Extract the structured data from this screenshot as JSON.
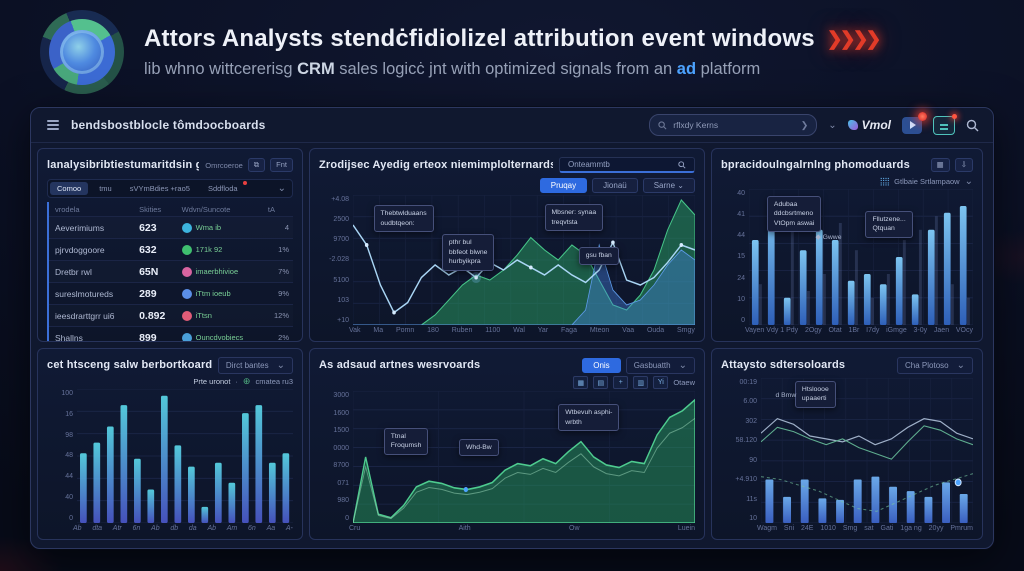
{
  "theme": {
    "bg": "#0a0f22",
    "panel": "#0e162e",
    "accent_blue": "#2e6ae0",
    "green": "#35b47c",
    "cyan": "#52c8e8",
    "red": "#e23b28"
  },
  "icons": {
    "chevron_down": "⌄",
    "copy": "⧉",
    "grid": "▦",
    "download": "⇩",
    "dot": "·",
    "circle_plus": "⊕",
    "diamond": "◆",
    "search": "⌕"
  },
  "header": {
    "title": "Attors Analysts stendċfidiolizel attribution event windows",
    "arrows": "❯❯❯❯",
    "subtitle_pre": "lib whno wittcererisg ",
    "subtitle_crm": "CRM",
    "subtitle_mid": " sales logicċ jnt with optimized signals from an ",
    "subtitle_ad": "ad",
    "subtitle_post": " platform"
  },
  "window": {
    "title": "bendsbostblocle tômdɔocboards",
    "search_value": "rflxdy Kerns",
    "brand": "Vmol"
  },
  "panelA": {
    "title": "lanalysibribtiestumaritdsin gjoords",
    "meta": "Omrcoeroe",
    "btn_fnt": "Fnt",
    "tabs": [
      {
        "label": "Comoo",
        "active": true,
        "dot": false
      },
      {
        "label": "tmu",
        "active": false,
        "dot": false
      },
      {
        "label": "sVYmBdies +rao5",
        "active": false,
        "dot": false
      },
      {
        "label": "Sddfloda",
        "active": false,
        "dot": true
      }
    ],
    "columns": [
      "vrodela",
      "Skities",
      "Wdvn/Suncote",
      "tA"
    ],
    "rows": [
      {
        "name": "Aeverimiums",
        "value": "623",
        "tag": "Wma ib",
        "pct": "4",
        "color": "#3db4de"
      },
      {
        "name": "pjrvdoggoore",
        "value": "632",
        "tag": "171k 92",
        "pct": "1%",
        "color": "#3fbf6f"
      },
      {
        "name": "Dretbr rwl",
        "value": "65N",
        "tag": "imaerbhivioe",
        "pct": "7%",
        "color": "#d864a0"
      },
      {
        "name": "sureslmotureds",
        "value": "289",
        "tag": "iTtm ioeub",
        "pct": "9%",
        "color": "#5b8fe8"
      },
      {
        "name": "ieesdrarttgrr ui6",
        "value": "0.892",
        "tag": "iTtsn",
        "pct": "12%",
        "color": "#e05c78"
      },
      {
        "name": "Shallns",
        "value": "899",
        "tag": "Ouncdvobiecs",
        "pct": "2%",
        "color": "#4a9fd8"
      }
    ]
  },
  "panelB": {
    "title": "Zrodijsec Ayedig erteox niemimplolternards",
    "search": "Onteammtb",
    "buttons": [
      {
        "label": "Pruqay",
        "active": true
      },
      {
        "label": "Jionaü",
        "active": false
      },
      {
        "label": "Sarne ⌄",
        "active": false
      }
    ]
  },
  "panelC": {
    "title": "bpracidoulngalrnlng phomoduards",
    "legend": "Gtlbaie Srtlampaow"
  },
  "panelD": {
    "title": "cet htsceng salw berbortkoards",
    "select": "Dirct bantes",
    "legend1": "Prte uronot",
    "legend2": "cmatea ru3"
  },
  "panelE": {
    "title": "As adsaud artnes wesrvoards",
    "button": "Onis",
    "select": "Gasbuatth",
    "toolbar_icons": [
      "▦",
      "▤",
      "+",
      "▥",
      "Yi"
    ],
    "toolbar_last": "Otaew"
  },
  "panelF": {
    "title": "Attaysto sdtersoloards",
    "select": "Cha Plotoso"
  },
  "chart_data": [
    {
      "id": "events-line",
      "type": "area",
      "panel": "panelB",
      "title": "Zrodijsec Ayedig erteox niemimplolternards",
      "ylabels": [
        "+4.08",
        "2500",
        "9700",
        "-2.028",
        "5100",
        "103",
        "+10"
      ],
      "xlabels": [
        "Vak",
        "Ma",
        "Pomn",
        "180",
        "Ruben",
        "1100",
        "Wal",
        "Yar",
        "Faga",
        "Mteon",
        "Vaa",
        "Ouda",
        "Smgy"
      ],
      "ymax": 2600,
      "grid": true,
      "series": [
        {
          "name": "green-area",
          "color": "#46c488",
          "fill": "rgba(40,150,95,0.55)",
          "values": [
            0,
            0,
            0,
            0,
            0,
            0,
            200,
            500,
            800,
            1000,
            900,
            1100,
            1400,
            1750,
            1500,
            1300,
            1600,
            1400,
            900,
            400,
            300,
            600,
            1100,
            1900,
            2500,
            2200
          ]
        },
        {
          "name": "blue-area",
          "color": "#5d9ae8",
          "fill": "rgba(70,130,225,0.40)",
          "values": [
            0,
            0,
            0,
            0,
            0,
            0,
            0,
            0,
            0,
            0,
            0,
            0,
            0,
            0,
            0,
            0,
            0,
            300,
            1600,
            700,
            400,
            500,
            800,
            1200,
            1500,
            1300
          ]
        },
        {
          "name": "blue-line",
          "color": "#aad6f5",
          "fill": "none",
          "values": [
            2000,
            1600,
            800,
            250,
            450,
            950,
            1200,
            1000,
            1150,
            950,
            1250,
            1100,
            1300,
            1150,
            1000,
            1200,
            1000,
            850,
            1100,
            1650,
            900,
            800,
            950,
            1250,
            1600,
            1500
          ]
        }
      ],
      "annotations": [
        {
          "x": 0.06,
          "y": 0.08,
          "lines": [
            "Thebtwlduaans",
            "oudbtqeon:"
          ],
          "plain": false
        },
        {
          "x": 0.26,
          "y": 0.3,
          "lines": [
            "pthr bul",
            "bbfeot blwne",
            "hurbyikpra"
          ],
          "plain": false
        },
        {
          "x": 0.56,
          "y": 0.07,
          "lines": [
            "Mbsner: synaa",
            "treqvtsta"
          ],
          "plain": false
        },
        {
          "x": 0.66,
          "y": 0.4,
          "lines": [
            "gsu fban"
          ],
          "plain": false
        }
      ]
    },
    {
      "id": "campaign-bars",
      "type": "bar",
      "panel": "panelC",
      "title": "bpracidoulngalrnlng phomoduards",
      "ylabels": [
        "40",
        "41",
        "44",
        "15",
        "24",
        "10",
        "0"
      ],
      "xlabels": [
        "Vayen Vdy 1 Pdy",
        "2Ogy",
        "Otat",
        "1Br",
        "I7dy",
        "iGmge",
        "3-0y",
        "Jaen",
        "VOcy"
      ],
      "ymax": 40,
      "grid": true,
      "values": [
        25,
        33,
        8,
        22,
        28,
        25,
        13,
        15,
        12,
        20,
        9,
        28,
        33,
        35
      ],
      "ghost": [
        12,
        0,
        28,
        10,
        15,
        30,
        22,
        8,
        15,
        25,
        28,
        32,
        12,
        8
      ],
      "annotations": [
        {
          "x": 0.08,
          "y": 0.05,
          "lines": [
            "Adubaa",
            "ddcbsrtmeno",
            "VtOpm aswai"
          ],
          "plain": false
        },
        {
          "x": 0.52,
          "y": 0.16,
          "lines": [
            "Fllutzene...",
            "Qtquan"
          ],
          "plain": false
        },
        {
          "x": 0.27,
          "y": 0.3,
          "lines": [
            "◆ Gwwe"
          ],
          "plain": true
        }
      ]
    },
    {
      "id": "sales-bars",
      "type": "bar",
      "panel": "panelD",
      "title": "cet htsceng salw berbortkoards",
      "ylabels": [
        "100",
        "16",
        "98",
        "48",
        "44",
        "40",
        "0"
      ],
      "xlabels": [
        "Ab",
        "dta",
        "Atr",
        "6n",
        "Ab",
        "db",
        "da",
        "Ab",
        "Am",
        "6n",
        "Aa",
        "A-"
      ],
      "ymax": 100,
      "grid": true,
      "values": [
        52,
        60,
        72,
        88,
        48,
        25,
        95,
        58,
        42,
        12,
        45,
        30,
        82,
        88,
        45,
        52
      ],
      "annotations": []
    },
    {
      "id": "adspend-area",
      "type": "area",
      "panel": "panelE",
      "title": "As adsaud artnes wesrvoards",
      "ylabels": [
        "3000",
        "1600",
        "1500",
        "0000",
        "8700",
        "071",
        "980",
        "0"
      ],
      "xlabels": [
        "Cru",
        "Aith",
        "Ow",
        "Luein"
      ],
      "ymax": 3000,
      "grid": true,
      "values": [
        0,
        1500,
        200,
        120,
        400,
        820,
        950,
        900,
        800,
        760,
        820,
        920,
        1200,
        1350,
        1300,
        1460,
        1350,
        1620,
        1850,
        1500,
        1320,
        1260,
        1400,
        1350,
        2000,
        2400,
        2550,
        2800
      ],
      "annotations": [
        {
          "x": 0.09,
          "y": 0.28,
          "lines": [
            "Ttnal",
            "Froqumsh"
          ],
          "plain": false
        },
        {
          "x": 0.31,
          "y": 0.36,
          "lines": [
            "Whd-Bw"
          ],
          "plain": false
        },
        {
          "x": 0.6,
          "y": 0.1,
          "lines": [
            "Wtbevuh asphi-",
            "wrbth"
          ],
          "plain": false
        }
      ]
    },
    {
      "id": "attribution-combo",
      "type": "combo",
      "panel": "panelF",
      "title": "Attaysto sdtersoloards",
      "ylabels": [
        "00:19",
        "6.00",
        "302",
        "58.120",
        "90",
        "+4.910",
        "11s",
        "10"
      ],
      "xlabels": [
        "Wagm",
        "Sni",
        "24E",
        "1010",
        "Smg",
        "sat",
        "Gati",
        "1ga ng",
        "20yy",
        "Pmrum"
      ],
      "grid": true,
      "bars": [
        0.3,
        0.18,
        0.3,
        0.17,
        0.16,
        0.3,
        0.32,
        0.25,
        0.22,
        0.18,
        0.28,
        0.2
      ],
      "line1": [
        0.62,
        0.72,
        0.68,
        0.6,
        0.58,
        0.56,
        0.6,
        0.54,
        0.58,
        0.66,
        0.72,
        0.7,
        0.62,
        0.58
      ],
      "line2": [
        0.56,
        0.66,
        0.63,
        0.58,
        0.54,
        0.58,
        0.52,
        0.48,
        0.44,
        0.56,
        0.67,
        0.64,
        0.58,
        0.54
      ],
      "trend": [
        0.32,
        0.3,
        0.26,
        0.22,
        0.16,
        0.1,
        0.08,
        0.14,
        0.2,
        0.26,
        0.3,
        0.34
      ],
      "annotations": [
        {
          "x": 0.16,
          "y": 0.02,
          "lines": [
            "Htsloooe",
            "upaaerti"
          ],
          "plain": false
        },
        {
          "x": 0.04,
          "y": 0.07,
          "lines": [
            "d Bmw"
          ],
          "plain": true
        }
      ]
    }
  ]
}
